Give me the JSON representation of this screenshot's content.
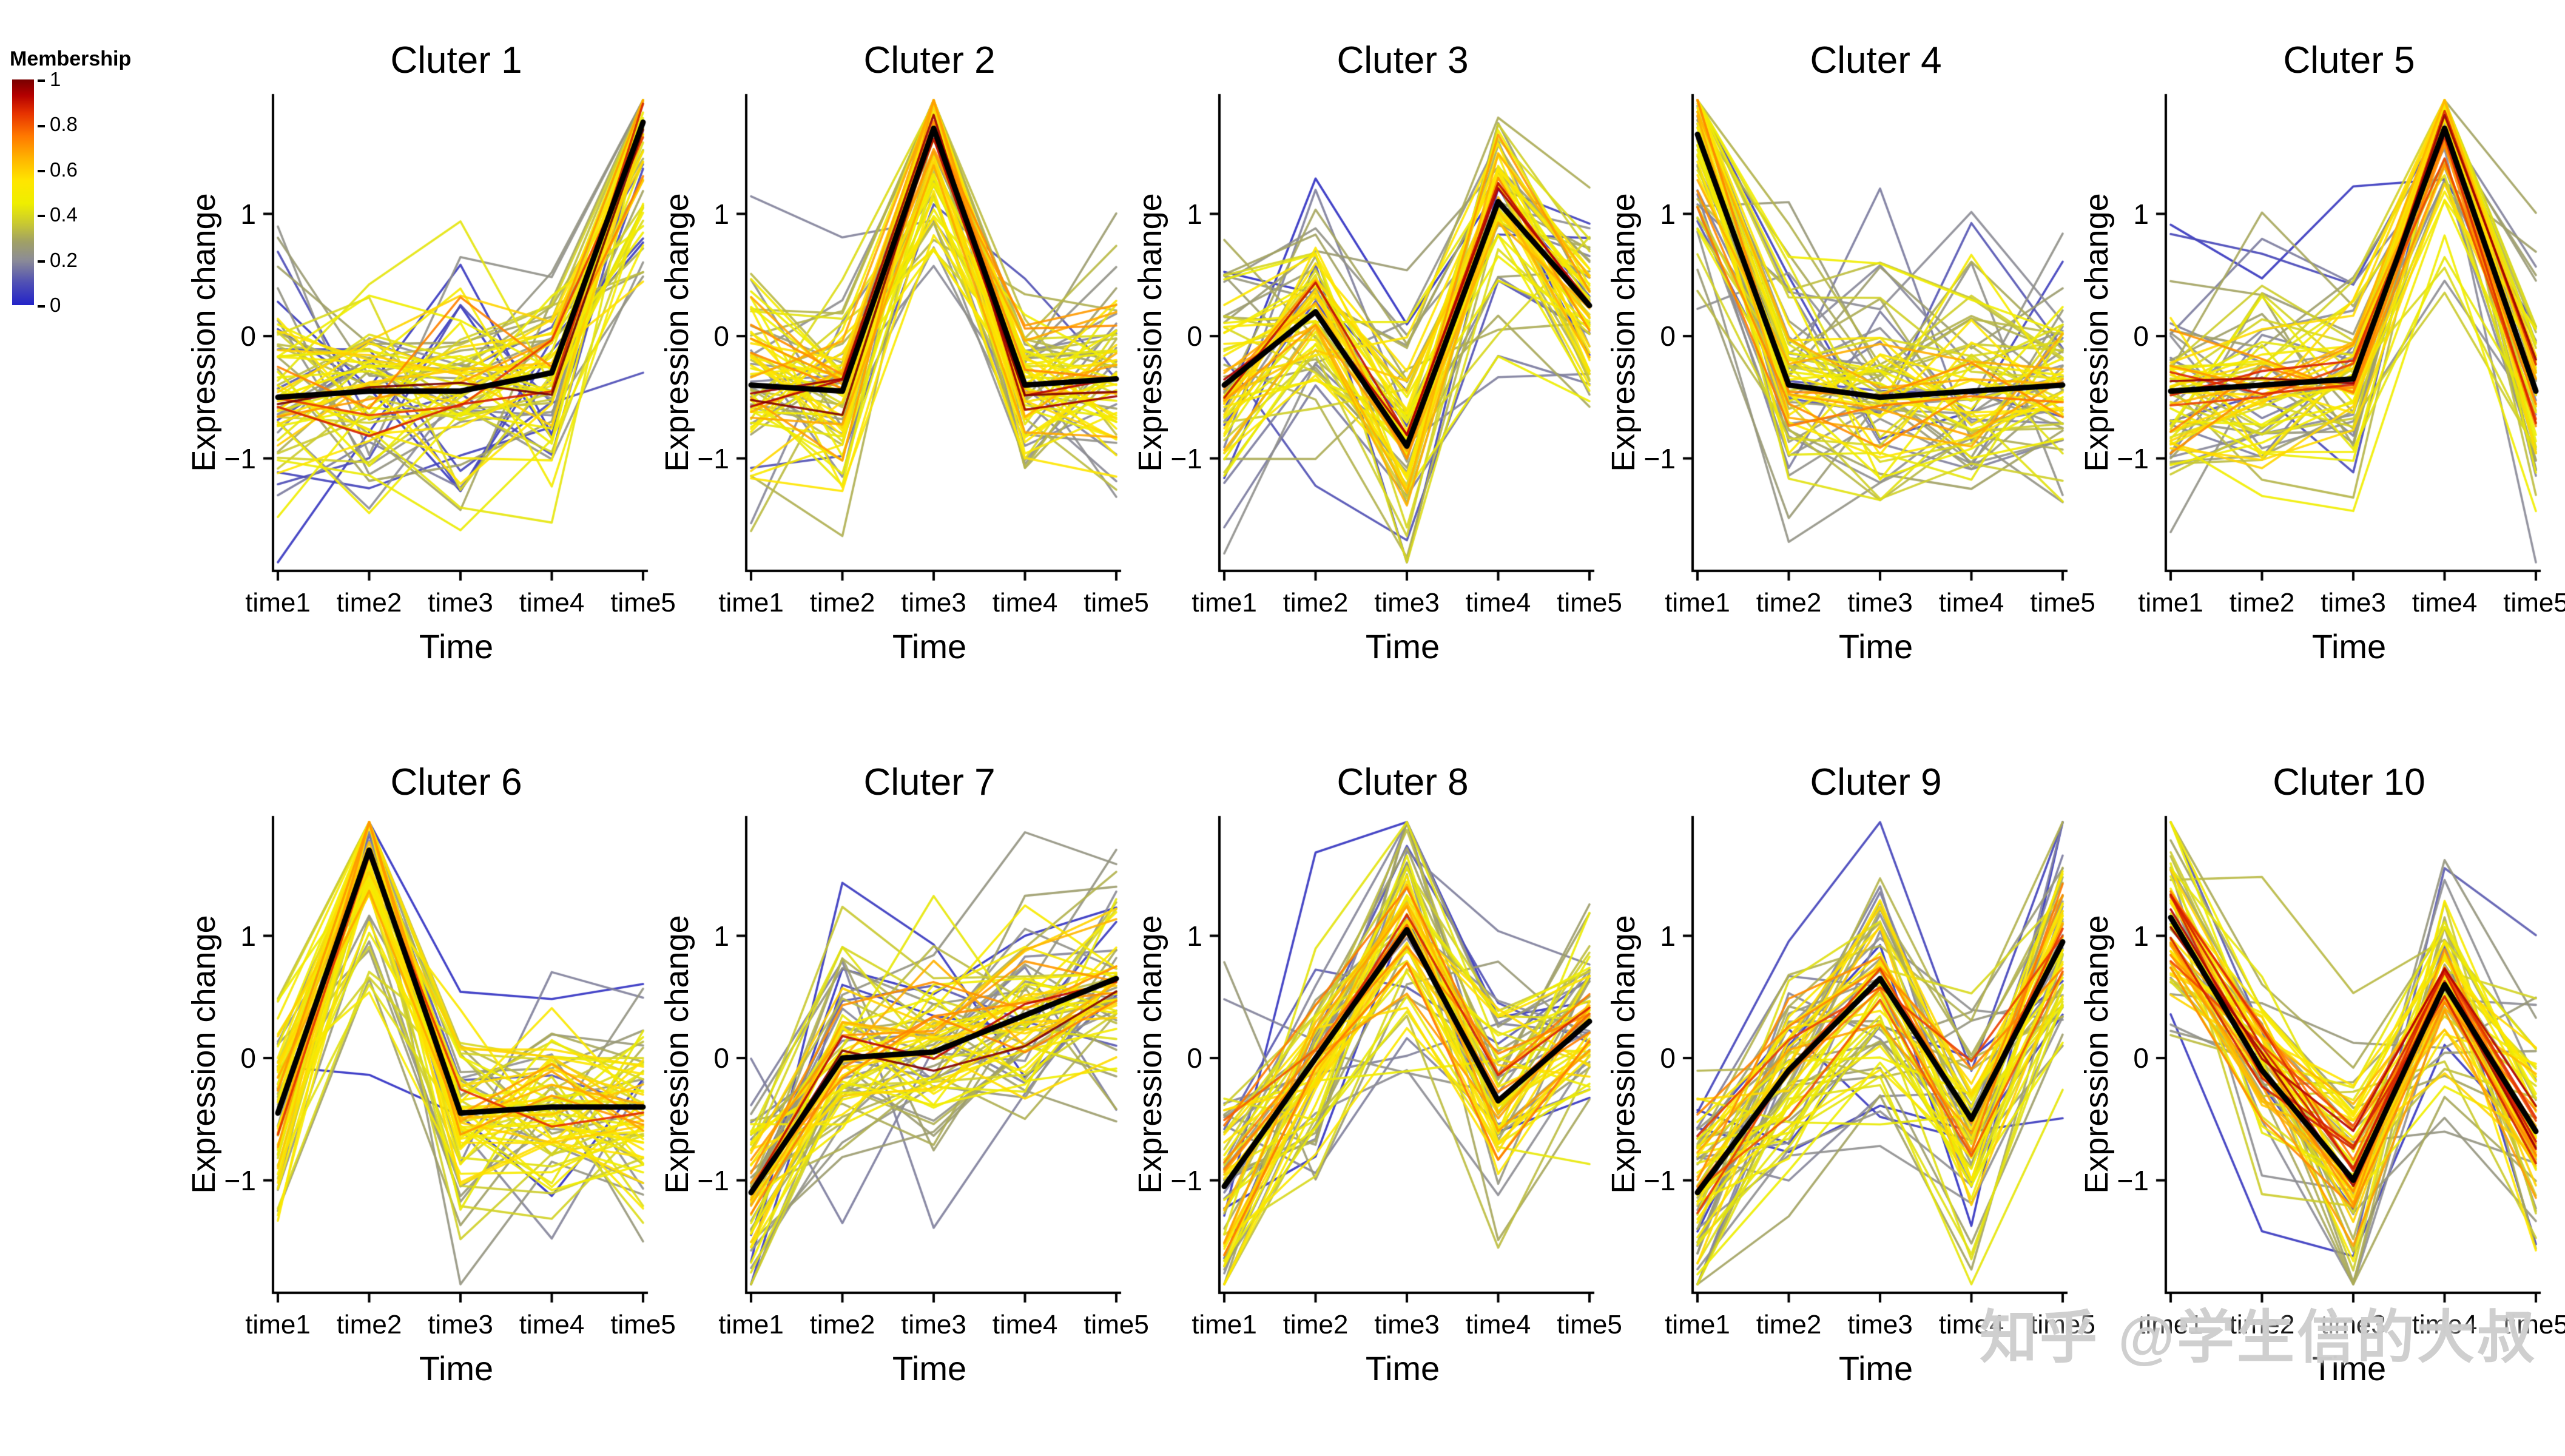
{
  "legend": {
    "title": "Membership",
    "ticks": [
      "1",
      "0.8",
      "0.6",
      "0.4",
      "0.2",
      "0"
    ]
  },
  "watermark": "知乎 @学生信的大叔",
  "chart_data": {
    "type": "line",
    "layout": {
      "rows": 2,
      "cols": 5
    },
    "x_categories": [
      "time1",
      "time2",
      "time3",
      "time4",
      "time5"
    ],
    "xlabel": "Time",
    "ylabel": "Expression change",
    "y_ticks": [
      -1,
      0,
      1
    ],
    "y_tick_labels": [
      "−1",
      "0",
      "1"
    ],
    "ylim": [
      -1.92,
      1.98
    ],
    "clusters": [
      {
        "title": "Cluter 1",
        "centroid": [
          -0.5,
          -0.45,
          -0.45,
          -0.3,
          1.75
        ]
      },
      {
        "title": "Cluter 2",
        "centroid": [
          -0.4,
          -0.45,
          1.7,
          -0.4,
          -0.35
        ]
      },
      {
        "title": "Cluter 3",
        "centroid": [
          -0.4,
          0.2,
          -0.9,
          1.1,
          0.25
        ]
      },
      {
        "title": "Cluter 4",
        "centroid": [
          1.65,
          -0.4,
          -0.5,
          -0.45,
          -0.4
        ]
      },
      {
        "title": "Cluter 5",
        "centroid": [
          -0.45,
          -0.4,
          -0.35,
          1.7,
          -0.45
        ]
      },
      {
        "title": "Cluter 6",
        "centroid": [
          -0.45,
          1.7,
          -0.45,
          -0.4,
          -0.4
        ]
      },
      {
        "title": "Cluter 7",
        "centroid": [
          -1.1,
          0.0,
          0.05,
          0.35,
          0.65
        ]
      },
      {
        "title": "Cluter 8",
        "centroid": [
          -1.05,
          0.0,
          1.05,
          -0.35,
          0.3
        ]
      },
      {
        "title": "Cluter 9",
        "centroid": [
          -1.1,
          -0.1,
          0.65,
          -0.5,
          0.95
        ]
      },
      {
        "title": "Cluter 10",
        "centroid": [
          1.15,
          -0.1,
          -1.0,
          0.6,
          -0.6
        ]
      }
    ],
    "members_per_cluster": 70,
    "membership_colormap": [
      {
        "m": 0.0,
        "color": "#2323c8"
      },
      {
        "m": 0.1,
        "color": "#5050b4"
      },
      {
        "m": 0.2,
        "color": "#8c8c96"
      },
      {
        "m": 0.28,
        "color": "#a0a066"
      },
      {
        "m": 0.36,
        "color": "#c8c832"
      },
      {
        "m": 0.45,
        "color": "#eeee00"
      },
      {
        "m": 0.55,
        "color": "#ffe600"
      },
      {
        "m": 0.65,
        "color": "#ffb400"
      },
      {
        "m": 0.75,
        "color": "#ff7800"
      },
      {
        "m": 0.85,
        "color": "#e63200"
      },
      {
        "m": 0.93,
        "color": "#b40000"
      },
      {
        "m": 1.0,
        "color": "#780000"
      }
    ]
  }
}
